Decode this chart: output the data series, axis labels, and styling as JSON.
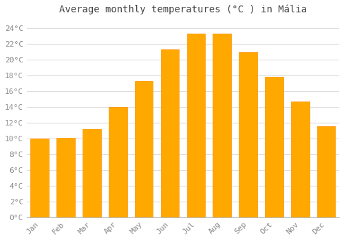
{
  "title": "Average monthly temperatures (°C ) in Mália",
  "months": [
    "Jan",
    "Feb",
    "Mar",
    "Apr",
    "May",
    "Jun",
    "Jul",
    "Aug",
    "Sep",
    "Oct",
    "Nov",
    "Dec"
  ],
  "values": [
    10.0,
    10.1,
    11.2,
    14.0,
    17.3,
    21.3,
    23.3,
    23.3,
    21.0,
    17.8,
    14.7,
    11.6
  ],
  "bar_color": "#FFA800",
  "bar_edge_color": "#FF9000",
  "background_color": "#FFFFFF",
  "grid_color": "#DDDDDD",
  "ytick_min": 0,
  "ytick_max": 24,
  "ytick_step": 2,
  "title_fontsize": 10,
  "tick_fontsize": 8,
  "figwidth": 5.0,
  "figheight": 3.5,
  "dpi": 100
}
